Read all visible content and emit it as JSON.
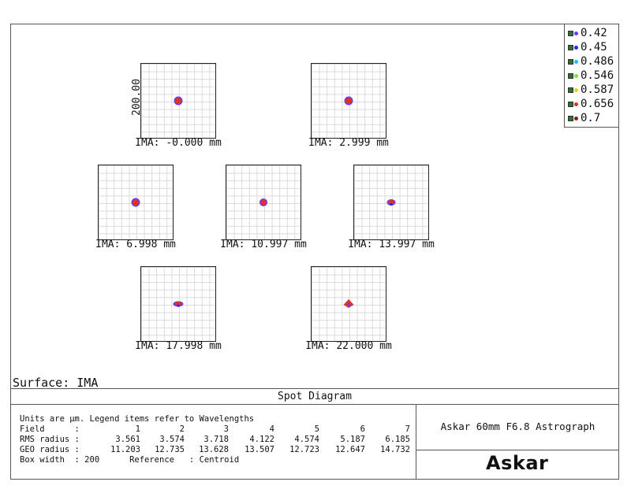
{
  "legend": {
    "items": [
      {
        "label": "0.42",
        "color": "#6a3df0"
      },
      {
        "label": "0.45",
        "color": "#2a2ae0"
      },
      {
        "label": "0.486",
        "color": "#22c0e0"
      },
      {
        "label": "0.546",
        "color": "#7de03a"
      },
      {
        "label": "0.587",
        "color": "#e0d020"
      },
      {
        "label": "0.656",
        "color": "#e0302a"
      },
      {
        "label": "0.7",
        "color": "#8a1a1a"
      }
    ]
  },
  "scale_label": "200.00",
  "fields": [
    {
      "label": "IMA: -0.000 mm",
      "spot": "round",
      "rx": 5.5,
      "ry": 5.5
    },
    {
      "label": "IMA: 2.999 mm",
      "spot": "round",
      "rx": 5.5,
      "ry": 5.5
    },
    {
      "label": "IMA: 6.998 mm",
      "spot": "round",
      "rx": 5.5,
      "ry": 5.5
    },
    {
      "label": "IMA: 10.997 mm",
      "spot": "round",
      "rx": 5,
      "ry": 5
    },
    {
      "label": "IMA: 13.997 mm",
      "spot": "flat",
      "rx": 5.5,
      "ry": 4
    },
    {
      "label": "IMA: 17.998 mm",
      "spot": "flat",
      "rx": 6.5,
      "ry": 3.5
    },
    {
      "label": "IMA: 22.000 mm",
      "spot": "diamond",
      "rx": 6.5,
      "ry": 6
    }
  ],
  "surface_label": "Surface: IMA",
  "title": "Spot Diagram",
  "info": {
    "units_line": "Units are µm. Legend items refer to Wavelengths",
    "field_label": "Field      :",
    "field_values": [
      "1",
      "2",
      "3",
      "4",
      "5",
      "6",
      "7"
    ],
    "rms_label": "RMS radius :",
    "rms_values": [
      "3.561",
      "3.574",
      "3.718",
      "4.122",
      "4.574",
      "5.187",
      "6.185"
    ],
    "geo_label": "GEO radius :",
    "geo_values": [
      "11.203",
      "12.735",
      "13.628",
      "13.507",
      "12.723",
      "12.647",
      "14.732"
    ],
    "box_line": "Box width  : 200      Reference   : Centroid"
  },
  "system_name": "Askar 60mm F6.8 Astrograph",
  "logo_text": "Askar"
}
